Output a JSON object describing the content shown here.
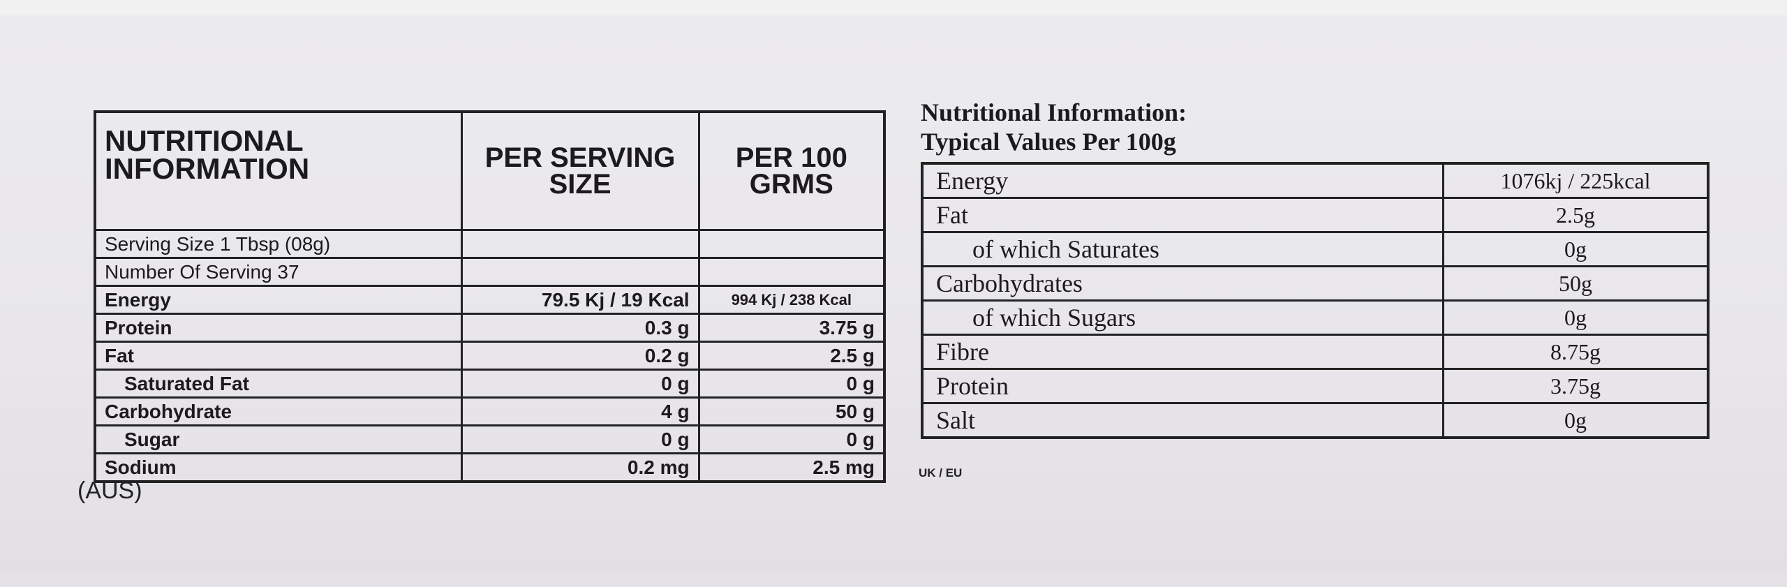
{
  "left_table": {
    "header": [
      "NUTRITIONAL INFORMATION",
      "PER SERVING SIZE",
      "PER 100 GRMS"
    ],
    "rows": [
      [
        "Serving Size 1 Tbsp (08g)"
      ],
      [
        "Number Of Serving  37"
      ],
      [
        "Energy",
        "79.5 Kj / 19 Kcal",
        "994 Kj / 238 Kcal"
      ],
      [
        "Protein",
        "0.3 g",
        "3.75 g"
      ],
      [
        "Fat",
        "0.2 g",
        "2.5 g"
      ],
      [
        "Saturated Fat",
        "0 g",
        "0 g"
      ],
      [
        "Carbohydrate",
        "4 g",
        "50 g"
      ],
      [
        "Sugar",
        "0 g",
        "0 g"
      ],
      [
        "Sodium",
        "0.2 mg",
        "2.5 mg"
      ]
    ],
    "footnote": "(AUS)"
  },
  "right_table": {
    "title": [
      "Nutritional Information:",
      "Typical Values Per 100g"
    ],
    "rows": [
      [
        "Energy",
        "1076kj / 225kcal"
      ],
      [
        "Fat",
        "2.5g"
      ],
      [
        "of which Saturates",
        "0g"
      ],
      [
        "Carbohydrates",
        "50g"
      ],
      [
        "of which Sugars",
        "0g"
      ],
      [
        "Fibre",
        "8.75g"
      ],
      [
        "Protein",
        "3.75g"
      ],
      [
        "Salt",
        "0g"
      ]
    ],
    "footnote": "UK / EU"
  }
}
